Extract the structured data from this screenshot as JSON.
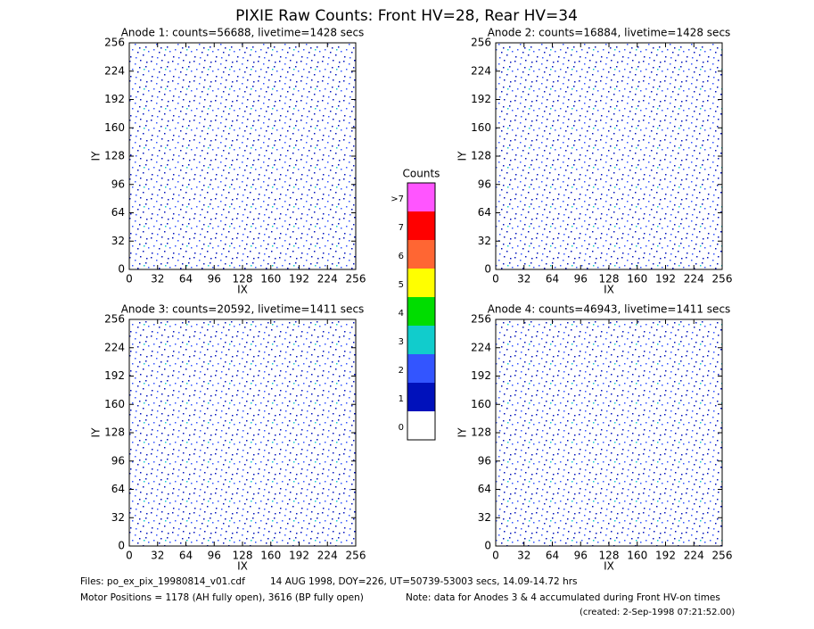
{
  "title": "PIXIE Raw Counts:  Front HV=28, Rear HV=34",
  "chart_data": [
    {
      "type": "heatmap",
      "title": "Anode 1: counts=56688, livetime=1428 secs",
      "xlabel": "IX",
      "ylabel": "IY",
      "xlim": [
        0,
        256
      ],
      "xticks": [
        0,
        32,
        64,
        96,
        128,
        160,
        192,
        224,
        256
      ],
      "ylim": [
        0,
        256
      ],
      "yticks": [
        0,
        32,
        64,
        96,
        128,
        160,
        192,
        224,
        256
      ]
    },
    {
      "type": "heatmap",
      "title": "Anode 2: counts=16884, livetime=1428 secs",
      "xlabel": "IX",
      "ylabel": "IY",
      "xlim": [
        0,
        256
      ],
      "xticks": [
        0,
        32,
        64,
        96,
        128,
        160,
        192,
        224,
        256
      ],
      "ylim": [
        0,
        256
      ],
      "yticks": [
        0,
        32,
        64,
        96,
        128,
        160,
        192,
        224,
        256
      ]
    },
    {
      "type": "heatmap",
      "title": "Anode 3: counts=20592, livetime=1411 secs",
      "xlabel": "IX",
      "ylabel": "IY",
      "xlim": [
        0,
        256
      ],
      "xticks": [
        0,
        32,
        64,
        96,
        128,
        160,
        192,
        224,
        256
      ],
      "ylim": [
        0,
        256
      ],
      "yticks": [
        0,
        32,
        64,
        96,
        128,
        160,
        192,
        224,
        256
      ]
    },
    {
      "type": "heatmap",
      "title": "Anode 4: counts=46943, livetime=1411 secs",
      "xlabel": "IX",
      "ylabel": "IY",
      "xlim": [
        0,
        256
      ],
      "xticks": [
        0,
        32,
        64,
        96,
        128,
        160,
        192,
        224,
        256
      ],
      "ylim": [
        0,
        256
      ],
      "yticks": [
        0,
        32,
        64,
        96,
        128,
        160,
        192,
        224,
        256
      ]
    }
  ],
  "colorbar": {
    "title": "Counts",
    "labels": [
      ">7",
      "7",
      "6",
      "5",
      "4",
      "3",
      "2",
      "1",
      "0"
    ],
    "colors": [
      "#ff55ff",
      "#ff0000",
      "#ff6633",
      "#ffff00",
      "#00dd00",
      "#11cccc",
      "#3355ff",
      "#0011bb",
      "#ffffff"
    ]
  },
  "footer": {
    "files": "Files: po_ex_pix_19980814_v01.cdf",
    "date": "14 AUG 1998, DOY=226, UT=50739-53003 secs, 14.09-14.72 hrs",
    "motor": "Motor Positions = 1178 (AH fully open), 3616 (BP fully open)",
    "note": "Note: data for Anodes 3 & 4 accumulated during Front HV-on times",
    "created": "(created:  2-Sep-1998 07:21:52.00)"
  }
}
